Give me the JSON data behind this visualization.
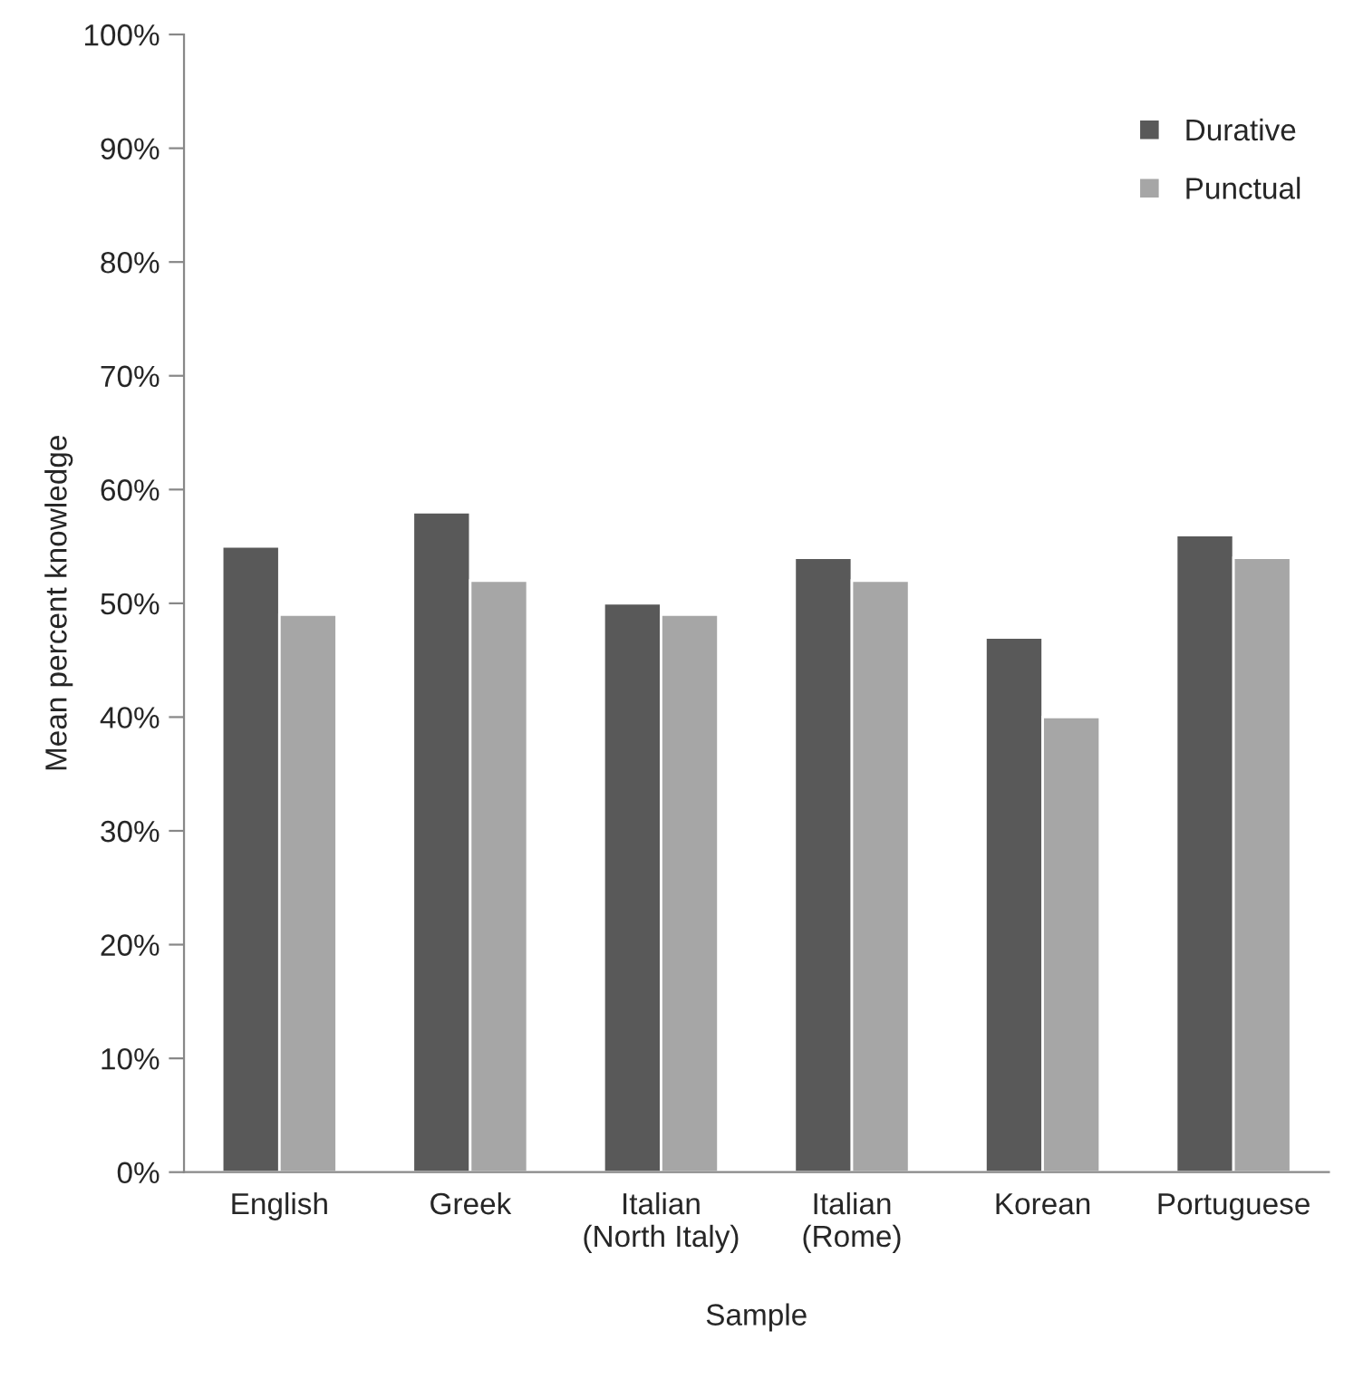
{
  "chart_data": {
    "type": "bar",
    "xlabel": "Sample",
    "ylabel": "Mean percent knowledge",
    "categories": [
      "English",
      "Greek",
      "Italian\n(North Italy)",
      "Italian\n(Rome)",
      "Korean",
      "Portuguese"
    ],
    "series": [
      {
        "name": "Durative",
        "color": "#595959",
        "values": [
          55,
          58,
          50,
          54,
          47,
          56
        ]
      },
      {
        "name": "Punctual",
        "color": "#a6a6a6",
        "values": [
          49,
          52,
          49,
          52,
          40,
          54
        ]
      }
    ],
    "ylim": [
      0,
      100
    ],
    "yticks": [
      {
        "value": 0,
        "label": "0%"
      },
      {
        "value": 10,
        "label": "10%"
      },
      {
        "value": 20,
        "label": "20%"
      },
      {
        "value": 30,
        "label": "30%"
      },
      {
        "value": 40,
        "label": "40%"
      },
      {
        "value": 50,
        "label": "50%"
      },
      {
        "value": 60,
        "label": "60%"
      },
      {
        "value": 70,
        "label": "70%"
      },
      {
        "value": 80,
        "label": "80%"
      },
      {
        "value": 90,
        "label": "90%"
      },
      {
        "value": 100,
        "label": "100%"
      }
    ],
    "grid": false,
    "legend": "top right"
  }
}
